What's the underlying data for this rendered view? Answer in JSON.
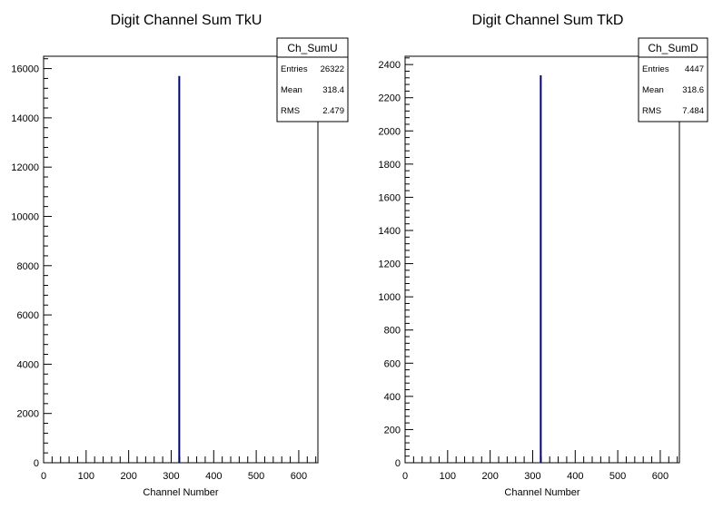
{
  "chart_data": [
    {
      "type": "bar",
      "title": "Digit Channel Sum TkU",
      "xlabel": "Channel Number",
      "ylabel": "",
      "xlim": [
        0,
        645
      ],
      "ylim": [
        0,
        16500
      ],
      "x_ticks": [
        0,
        100,
        200,
        300,
        400,
        500,
        600
      ],
      "y_ticks": [
        0,
        2000,
        4000,
        6000,
        8000,
        10000,
        12000,
        14000,
        16000
      ],
      "x": [
        319
      ],
      "values": [
        15700
      ],
      "series_color": "#000080",
      "grid": false,
      "stats_box": {
        "title": "Ch_SumU",
        "placement": "top-right",
        "rows": [
          {
            "name": "Entries",
            "value": "26322"
          },
          {
            "name": "Mean",
            "value": "318.4"
          },
          {
            "name": "RMS",
            "value": "2.479"
          }
        ]
      }
    },
    {
      "type": "bar",
      "title": "Digit Channel Sum TkD",
      "xlabel": "Channel Number",
      "ylabel": "",
      "xlim": [
        0,
        645
      ],
      "ylim": [
        0,
        2450
      ],
      "x_ticks": [
        0,
        100,
        200,
        300,
        400,
        500,
        600
      ],
      "y_ticks": [
        0,
        200,
        400,
        600,
        800,
        1000,
        1200,
        1400,
        1600,
        1800,
        2000,
        2200,
        2400
      ],
      "x": [
        319
      ],
      "values": [
        2335
      ],
      "series_color": "#000080",
      "grid": false,
      "stats_box": {
        "title": "Ch_SumD",
        "placement": "top-right",
        "rows": [
          {
            "name": "Entries",
            "value": "4447"
          },
          {
            "name": "Mean",
            "value": "318.6"
          },
          {
            "name": "RMS",
            "value": "7.484"
          }
        ]
      }
    }
  ]
}
